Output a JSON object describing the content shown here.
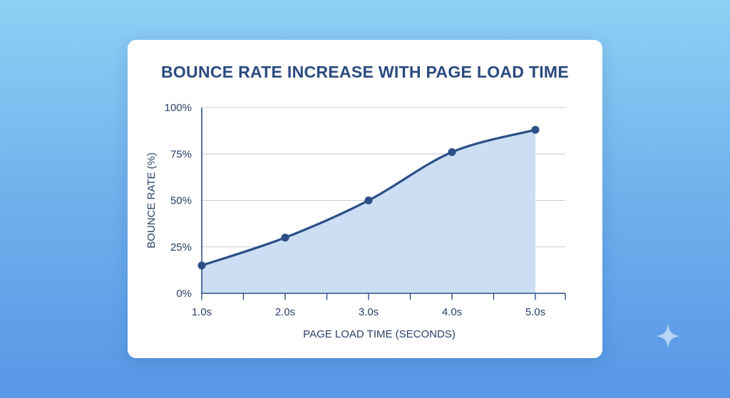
{
  "colors": {
    "line": "#2b4f86",
    "area": "#c9dcf3",
    "grid": "#c8ccd6",
    "axis": "#2b4f86",
    "title": "#2a4a7f"
  },
  "chart_data": {
    "type": "area",
    "title": "BOUNCE RATE INCREASE WITH PAGE LOAD TIME",
    "xlabel": "PAGE LOAD TIME (SECONDS)",
    "ylabel": "BOUNCE RATE (%)",
    "x": [
      1.0,
      2.0,
      3.0,
      4.0,
      5.0
    ],
    "x_tick_labels": [
      "1.0s",
      "2.0s",
      "3.0s",
      "4.0s",
      "5.0s"
    ],
    "values": [
      15,
      30,
      50,
      76,
      88
    ],
    "y_ticks": [
      0,
      25,
      50,
      75,
      100
    ],
    "y_tick_labels": [
      "0%",
      "25%",
      "50%",
      "75%",
      "100%"
    ],
    "xlim": [
      1.0,
      5.0
    ],
    "ylim": [
      0,
      100
    ],
    "grid": "horizontal"
  },
  "decor": {
    "icon": "sparkle-icon"
  }
}
